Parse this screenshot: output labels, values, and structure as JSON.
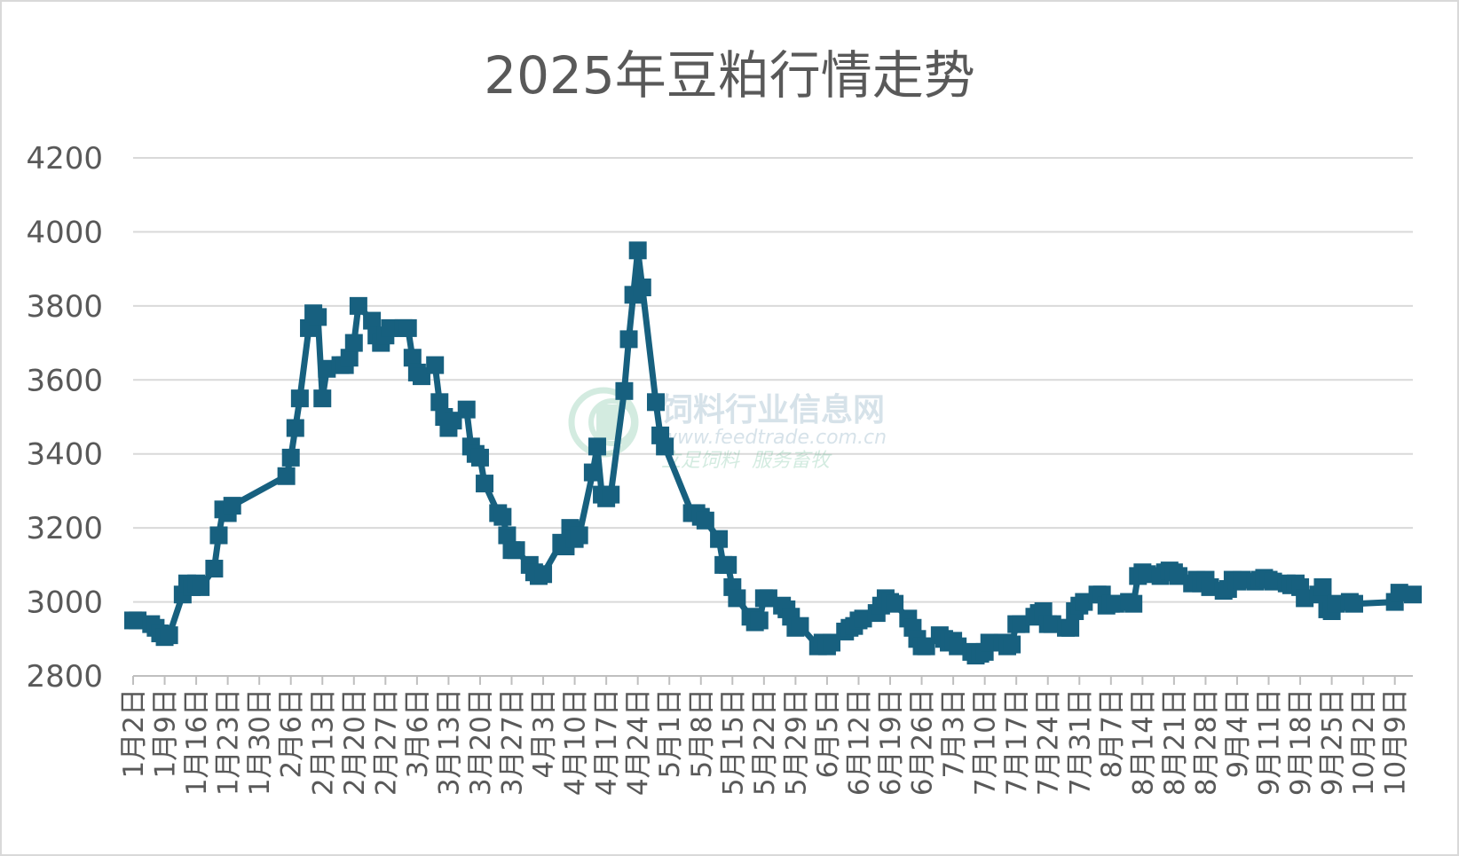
{
  "chart_data": {
    "type": "line",
    "title": "2025年豆粕行情走势",
    "xlabel": "",
    "ylabel": "",
    "ylim": [
      2800,
      4200
    ],
    "yticks": [
      2800,
      3000,
      3200,
      3400,
      3600,
      3800,
      4000,
      4200
    ],
    "grid": true,
    "legend": "none",
    "x_range": [
      "1月2日",
      "10月13日"
    ],
    "categories": [
      "1月2日",
      "1月9日",
      "1月16日",
      "1月23日",
      "1月30日",
      "2月6日",
      "2月13日",
      "2月20日",
      "2月27日",
      "3月6日",
      "3月13日",
      "3月20日",
      "3月27日",
      "4月3日",
      "4月10日",
      "4月17日",
      "4月24日",
      "5月1日",
      "5月8日",
      "5月15日",
      "5月22日",
      "5月29日",
      "6月5日",
      "6月12日",
      "6月19日",
      "6月26日",
      "7月3日",
      "7月10日",
      "7月17日",
      "7月24日",
      "7月31日",
      "8月7日",
      "8月14日",
      "8月21日",
      "8月28日",
      "9月4日",
      "9月11日",
      "9月18日",
      "9月25日",
      "10月2日",
      "10月9日"
    ],
    "series": [
      {
        "color": "#17607f",
        "marker": "square",
        "points": [
          [
            "1月2日",
            2950
          ],
          [
            "1月3日",
            2950
          ],
          [
            "1月6日",
            2940
          ],
          [
            "1月7日",
            2930
          ],
          [
            "1月8日",
            2915
          ],
          [
            "1月9日",
            2905
          ],
          [
            "1月10日",
            2910
          ],
          [
            "1月13日",
            3020
          ],
          [
            "1月14日",
            3050
          ],
          [
            "1月15日",
            3040
          ],
          [
            "1月16日",
            3050
          ],
          [
            "1月17日",
            3040
          ],
          [
            "1月20日",
            3090
          ],
          [
            "1月21日",
            3180
          ],
          [
            "1月22日",
            3250
          ],
          [
            "1月23日",
            3240
          ],
          [
            "1月24日",
            3260
          ],
          [
            "2月5日",
            3340
          ],
          [
            "2月6日",
            3390
          ],
          [
            "2月7日",
            3470
          ],
          [
            "2月8日",
            3550
          ],
          [
            "2月10日",
            3740
          ],
          [
            "2月11日",
            3780
          ],
          [
            "2月12日",
            3770
          ],
          [
            "2月13日",
            3550
          ],
          [
            "2月14dd",
            3630
          ],
          [
            "2月17日",
            3640
          ],
          [
            "2月18日",
            3640
          ],
          [
            "2月19日",
            3660
          ],
          [
            "2月20日",
            3700
          ],
          [
            "2月21日",
            3800
          ],
          [
            "2月24日",
            3760
          ],
          [
            "2月25日",
            3720
          ],
          [
            "2月26日",
            3700
          ],
          [
            "2月27日",
            3720
          ],
          [
            "2月28日",
            3740
          ],
          [
            "3月3日",
            3740
          ],
          [
            "3月4日",
            3740
          ],
          [
            "3月5日",
            3660
          ],
          [
            "3月6日",
            3620
          ],
          [
            "3月7日",
            3610
          ],
          [
            "3月10日",
            3640
          ],
          [
            "3月11日",
            3540
          ],
          [
            "3月12日",
            3500
          ],
          [
            "3月13日",
            3470
          ],
          [
            "3月14日",
            3490
          ],
          [
            "3月17日",
            3520
          ],
          [
            "3月18日",
            3420
          ],
          [
            "3月19日",
            3400
          ],
          [
            "3月20日",
            3390
          ],
          [
            "3月21日",
            3320
          ],
          [
            "3月24日",
            3240
          ],
          [
            "3月25日",
            3230
          ],
          [
            "3月26日",
            3180
          ],
          [
            "3月27日",
            3140
          ],
          [
            "3月28日",
            3140
          ],
          [
            "3月31日",
            3100
          ],
          [
            "4月1日",
            3080
          ],
          [
            "4月2日",
            3070
          ],
          [
            "4月3日",
            3075
          ],
          [
            "4月7日",
            3160
          ],
          [
            "4月8日",
            3150
          ],
          [
            "4月9日",
            3200
          ],
          [
            "4月10日",
            3170
          ],
          [
            "4月11日",
            3180
          ],
          [
            "4月14日",
            3350
          ],
          [
            "4月15日",
            3420
          ],
          [
            "4月16日",
            3290
          ],
          [
            "4月17日",
            3280
          ],
          [
            "4月18日",
            3290
          ],
          [
            "4月21日",
            3570
          ],
          [
            "4月22日",
            3710
          ],
          [
            "4月23日",
            3830
          ],
          [
            "4月24日",
            3950
          ],
          [
            "4月25日",
            3850
          ],
          [
            "4月28日",
            3540
          ],
          [
            "4月29日",
            3450
          ],
          [
            "4月30日",
            3420
          ],
          [
            "5月6日",
            3240
          ],
          [
            "5月7日",
            3240
          ],
          [
            "5月8日",
            3230
          ],
          [
            "5月9日",
            3220
          ],
          [
            "5月12日",
            3170
          ],
          [
            "5月13日",
            3100
          ],
          [
            "5月14日",
            3100
          ],
          [
            "5月15日",
            3040
          ],
          [
            "5月16日",
            3010
          ],
          [
            "5月19日",
            2960
          ],
          [
            "5月20日",
            2945
          ],
          [
            "5月21日",
            2950
          ],
          [
            "5月22日",
            3010
          ],
          [
            "5月23日",
            3010
          ],
          [
            "5月26日",
            2990
          ],
          [
            "5月27日",
            2980
          ],
          [
            "5月28日",
            2960
          ],
          [
            "5月29日",
            2930
          ],
          [
            "5月30日",
            2935
          ],
          [
            "6月3日",
            2880
          ],
          [
            "6月4日",
            2890
          ],
          [
            "6月5日",
            2880
          ],
          [
            "6月6日",
            2890
          ],
          [
            "6月9日",
            2920
          ],
          [
            "6月10日",
            2930
          ],
          [
            "6月11日",
            2935
          ],
          [
            "6月12日",
            2950
          ],
          [
            "6月13日",
            2955
          ],
          [
            "6月16日",
            2970
          ],
          [
            "6月17日",
            2990
          ],
          [
            "6月18日",
            3010
          ],
          [
            "6月19日",
            3000
          ],
          [
            "6月20日",
            2995
          ],
          [
            "6月23日",
            2955
          ],
          [
            "6月24日",
            2930
          ],
          [
            "6月25日",
            2900
          ],
          [
            "6月26日",
            2880
          ],
          [
            "6月27日",
            2880
          ],
          [
            "6月30日",
            2910
          ],
          [
            "7月1日",
            2900
          ],
          [
            "7月2日",
            2890
          ],
          [
            "7月3日",
            2895
          ],
          [
            "7月4日",
            2880
          ],
          [
            "7月7日",
            2865
          ],
          [
            "7月8日",
            2855
          ],
          [
            "7月9日",
            2860
          ],
          [
            "7月10日",
            2865
          ],
          [
            "7月11日",
            2890
          ],
          [
            "7月14日",
            2890
          ],
          [
            "7月15日",
            2880
          ],
          [
            "7月16日",
            2885
          ],
          [
            "7月17日",
            2940
          ],
          [
            "7月18日",
            2940
          ],
          [
            "7月21日",
            2960
          ],
          [
            "7月22日",
            2970
          ],
          [
            "7月23日",
            2975
          ],
          [
            "7月24日",
            2940
          ],
          [
            "7月25日",
            2940
          ],
          [
            "7月28日",
            2930
          ],
          [
            "7月29日",
            2930
          ],
          [
            "7月30日",
            2975
          ],
          [
            "7月31日",
            2990
          ],
          [
            "8月1日",
            3000
          ],
          [
            "8月4日",
            3020
          ],
          [
            "8月5日",
            3020
          ],
          [
            "8月6日",
            2990
          ],
          [
            "8月7日",
            2995
          ],
          [
            "8月8日",
            2995
          ],
          [
            "8月11日",
            3000
          ],
          [
            "8月12日",
            2995
          ],
          [
            "8月13日",
            3070
          ],
          [
            "8月14日",
            3080
          ],
          [
            "8月15日",
            3075
          ],
          [
            "8月18日",
            3070
          ],
          [
            "8月19日",
            3080
          ],
          [
            "8月20日",
            3085
          ],
          [
            "8月21日",
            3080
          ],
          [
            "8月22日",
            3070
          ],
          [
            "8月25日",
            3050
          ],
          [
            "8月26日",
            3060
          ],
          [
            "8月27日",
            3050
          ],
          [
            "8月28日",
            3060
          ],
          [
            "8月29日",
            3040
          ],
          [
            "9月1日",
            3030
          ],
          [
            "9月2日",
            3035
          ],
          [
            "9月3日",
            3060
          ],
          [
            "9月4日",
            3055
          ],
          [
            "9月5日",
            3060
          ],
          [
            "9月8日",
            3055
          ],
          [
            "9月9日",
            3060
          ],
          [
            "9月10日",
            3065
          ],
          [
            "9月11日",
            3060
          ],
          [
            "9月12日",
            3055
          ],
          [
            "9月15日",
            3050
          ],
          [
            "9月16日",
            3045
          ],
          [
            "9月17日",
            3050
          ],
          [
            "9月18日",
            3040
          ],
          [
            "9月19日",
            3010
          ],
          [
            "9月22日",
            3020
          ],
          [
            "9月23日",
            3040
          ],
          [
            "9月24日",
            2980
          ],
          [
            "9月25日",
            2975
          ],
          [
            "9月26日",
            2995
          ],
          [
            "9月29日",
            3000
          ],
          [
            "9月30日",
            2995
          ],
          [
            "10月9日",
            3000
          ],
          [
            "10月10日",
            3025
          ],
          [
            "10月13日",
            3020
          ]
        ]
      }
    ]
  },
  "watermark": {
    "name": "饲料行业信息网",
    "url": "www.feedtrade.com.cn",
    "slogan": "立足饲料  服务畜牧"
  }
}
